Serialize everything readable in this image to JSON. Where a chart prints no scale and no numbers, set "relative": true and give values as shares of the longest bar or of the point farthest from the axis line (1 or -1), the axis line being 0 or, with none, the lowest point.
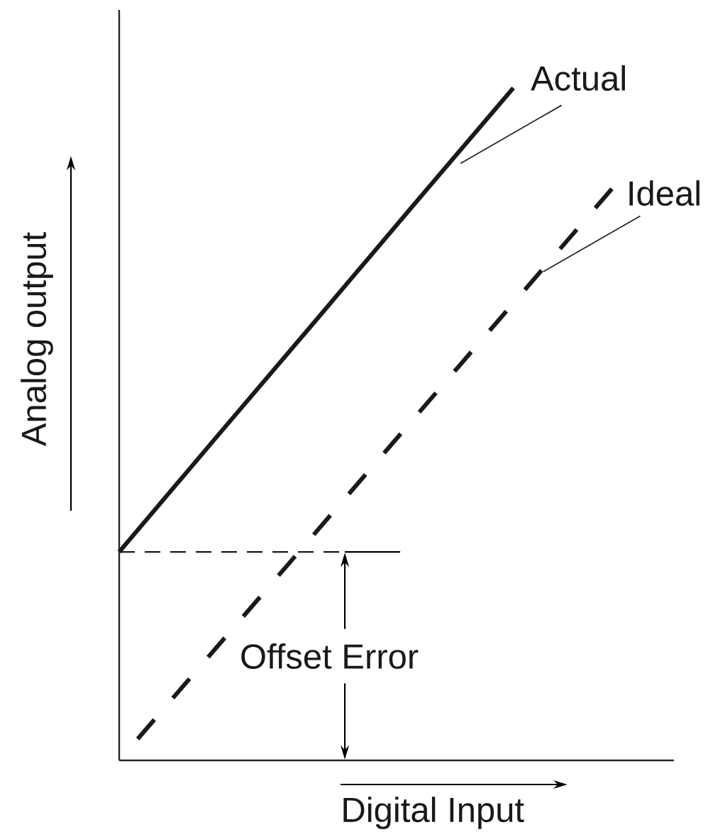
{
  "chart_data": {
    "type": "line",
    "relative": true,
    "xlabel": "Digital Input",
    "ylabel": "Analog output",
    "categories": [
      null,
      null,
      null,
      null,
      null,
      null
    ],
    "series": [
      {
        "name": "Actual",
        "color": "#1a1a1a",
        "line_style": "solid",
        "values": [
          0.31,
          0.483,
          0.655,
          0.828,
          1.0,
          null
        ]
      },
      {
        "name": "Ideal",
        "color": "#1a1a1a",
        "line_style": "dashed",
        "values": [
          0,
          0.17,
          0.34,
          0.51,
          0.68,
          0.85
        ]
      }
    ],
    "ref_lines": [
      {
        "axis": "y",
        "value": 0.31,
        "color": "#1a1a1a",
        "line_style": "dashed"
      }
    ],
    "annotations": [
      "Offset Error"
    ]
  }
}
